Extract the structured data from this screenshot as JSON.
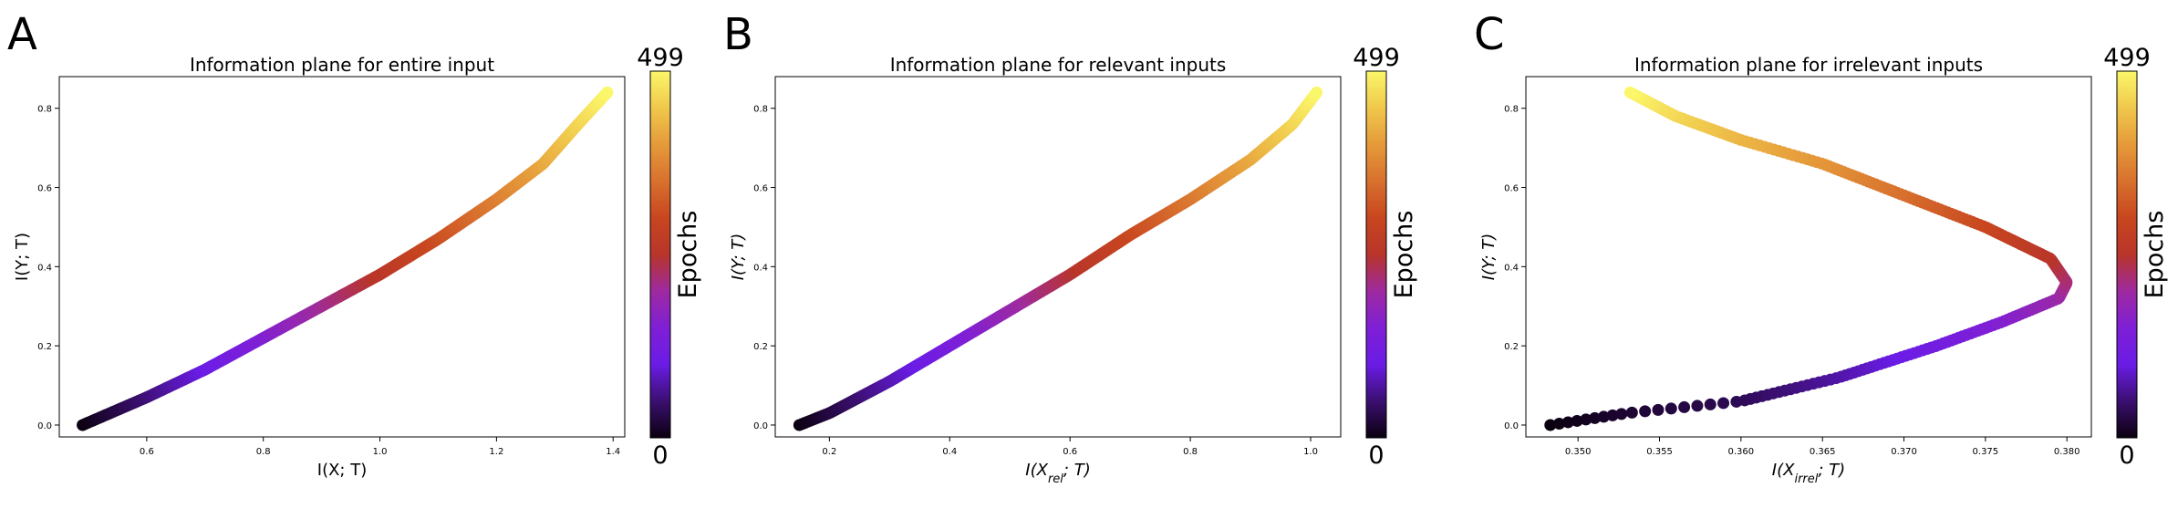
{
  "colormap": [
    "#0b0010",
    "#3b0f70",
    "#6a1ce6",
    "#7f1fd6",
    "#9e2aa0",
    "#b8352a",
    "#c8461f",
    "#d8712e",
    "#e59a3a",
    "#f0c84c",
    "#fbf76a"
  ],
  "chart_data": [
    {
      "type": "scatter",
      "panel_letter": "A",
      "title": "Information plane for entire input",
      "xlabel": "I(X; T)",
      "ylabel": "I(Y; T)",
      "xlim": [
        0.45,
        1.42
      ],
      "ylim": [
        -0.03,
        0.88
      ],
      "xticks": [
        0.6,
        0.8,
        1.0,
        1.2,
        1.4
      ],
      "xtick_labels": [
        "0.6",
        "0.8",
        "1.0",
        "1.2",
        "1.4"
      ],
      "yticks": [
        0.0,
        0.2,
        0.4,
        0.6,
        0.8
      ],
      "ytick_labels": [
        "0.0",
        "0.2",
        "0.4",
        "0.6",
        "0.8"
      ],
      "colorbar": {
        "label": "Epochs",
        "min_label": "0",
        "max_label": "499"
      },
      "trajectory": [
        [
          0.49,
          0.0
        ],
        [
          0.6,
          0.07
        ],
        [
          0.7,
          0.14
        ],
        [
          0.8,
          0.22
        ],
        [
          0.9,
          0.3
        ],
        [
          1.0,
          0.38
        ],
        [
          1.1,
          0.47
        ],
        [
          1.2,
          0.57
        ],
        [
          1.28,
          0.66
        ],
        [
          1.34,
          0.76
        ],
        [
          1.39,
          0.84
        ]
      ]
    },
    {
      "type": "scatter",
      "panel_letter": "B",
      "title": "Information plane for relevant inputs",
      "xlabel": "I(X_rel; T)",
      "ylabel": "I(Y; T)",
      "xlim": [
        0.11,
        1.05
      ],
      "ylim": [
        -0.03,
        0.88
      ],
      "xticks": [
        0.2,
        0.4,
        0.6,
        0.8,
        1.0
      ],
      "xtick_labels": [
        "0.2",
        "0.4",
        "0.6",
        "0.8",
        "1.0"
      ],
      "yticks": [
        0.0,
        0.2,
        0.4,
        0.6,
        0.8
      ],
      "ytick_labels": [
        "0.0",
        "0.2",
        "0.4",
        "0.6",
        "0.8"
      ],
      "colorbar": {
        "label": "Epochs",
        "min_label": "0",
        "max_label": "499"
      },
      "trajectory": [
        [
          0.15,
          0.0
        ],
        [
          0.2,
          0.03
        ],
        [
          0.3,
          0.11
        ],
        [
          0.4,
          0.2
        ],
        [
          0.5,
          0.29
        ],
        [
          0.6,
          0.38
        ],
        [
          0.7,
          0.48
        ],
        [
          0.8,
          0.57
        ],
        [
          0.9,
          0.67
        ],
        [
          0.97,
          0.76
        ],
        [
          1.01,
          0.84
        ]
      ]
    },
    {
      "type": "scatter",
      "panel_letter": "C",
      "title": "Information plane for irrelevant inputs",
      "xlabel": "I(X_irrel; T)",
      "ylabel": "I(Y; T)",
      "xlim": [
        0.3468,
        0.3815
      ],
      "ylim": [
        -0.03,
        0.88
      ],
      "xticks": [
        0.35,
        0.355,
        0.36,
        0.365,
        0.37,
        0.375,
        0.38
      ],
      "xtick_labels": [
        "0.350",
        "0.355",
        "0.360",
        "0.365",
        "0.370",
        "0.375",
        "0.380"
      ],
      "yticks": [
        0.0,
        0.2,
        0.4,
        0.6,
        0.8
      ],
      "ytick_labels": [
        "0.0",
        "0.2",
        "0.4",
        "0.6",
        "0.8"
      ],
      "colorbar": {
        "label": "Epochs",
        "min_label": "0",
        "max_label": "499"
      },
      "trajectory": [
        [
          0.3483,
          0.0
        ],
        [
          0.353,
          0.03
        ],
        [
          0.36,
          0.06
        ],
        [
          0.366,
          0.12
        ],
        [
          0.372,
          0.2
        ],
        [
          0.376,
          0.26
        ],
        [
          0.3795,
          0.32
        ],
        [
          0.38,
          0.36
        ],
        [
          0.379,
          0.42
        ],
        [
          0.375,
          0.5
        ],
        [
          0.37,
          0.58
        ],
        [
          0.365,
          0.66
        ],
        [
          0.36,
          0.72
        ],
        [
          0.356,
          0.78
        ],
        [
          0.3532,
          0.84
        ]
      ]
    }
  ]
}
